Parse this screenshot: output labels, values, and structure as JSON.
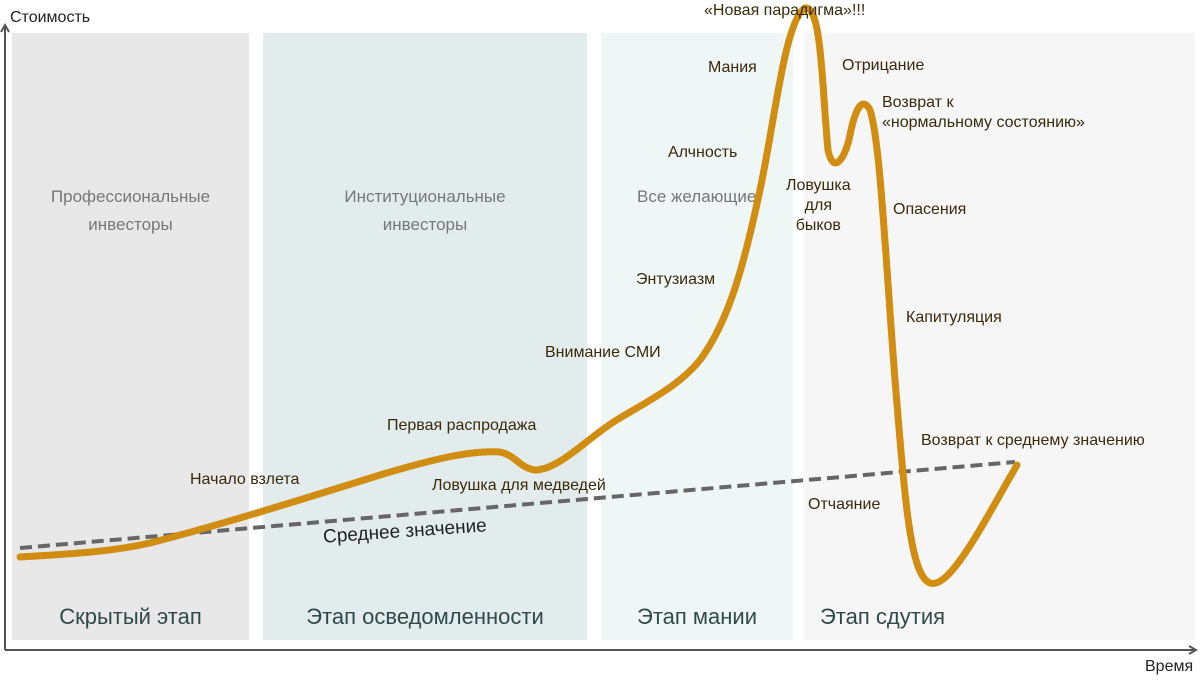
{
  "axes": {
    "y_label": "Стоимость",
    "x_label": "Время"
  },
  "stages": [
    {
      "investors": "Профессиональные\nинвесторы",
      "name": "Скрытый этап",
      "color": "#e8e8e8"
    },
    {
      "investors": "Институциональные\nинвесторы",
      "name": "Этап осведомленности",
      "color": "#e3ecec"
    },
    {
      "investors": "Все желающие",
      "name": "Этап мании",
      "color": "#eef6f6"
    },
    {
      "investors": "",
      "name": "Этап сдутия",
      "color": "#f7f6f7"
    }
  ],
  "labels": {
    "takeoff": "Начало взлета",
    "first_selloff": "Первая распродажа",
    "bear_trap": "Ловушка для медведей",
    "media": "Внимание СМИ",
    "enthusiasm": "Энтузиазм",
    "greed": "Алчность",
    "mania": "Мания",
    "new_paradigm": "«Новая парадигма»!!!",
    "denial": "Отрицание",
    "return_normal": "Возврат к\n«нормальному состоянию»",
    "bull_trap": "Ловушка\nдля\nбыков",
    "fear": "Опасения",
    "capitulation": "Капитуляция",
    "despair": "Отчаяние",
    "return_mean": "Возврат к среднему значению",
    "mean": "Среднее значение"
  },
  "colors": {
    "curve": "#d08d12",
    "mean_line": "#666666",
    "axis": "#555555"
  }
}
